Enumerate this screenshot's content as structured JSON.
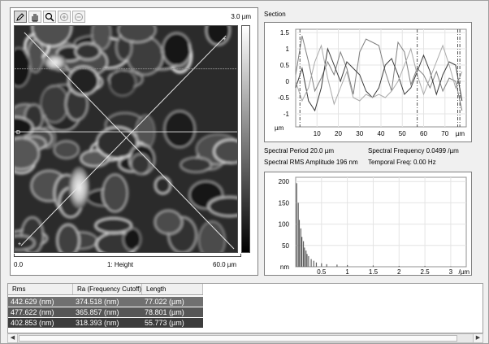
{
  "image_panel": {
    "tools": [
      "pencil-icon",
      "hand-icon",
      "zoom-icon",
      "zoom-in-icon",
      "zoom-out-icon"
    ],
    "scale_max": "3.0 µm",
    "x_min": "0.0",
    "channel": "1: Height",
    "x_max": "60.0 µm"
  },
  "section": {
    "title": "Section",
    "spectral_period": "Spectral Period 20.0 µm",
    "spectral_frequency": "Spectral Frequency 0.0499 /µm",
    "spectral_rms": "Spectral RMS Amplitude 196 nm",
    "temporal_freq": "Temporal Freq: 0.00 Hz"
  },
  "chart_data": [
    {
      "type": "line",
      "title": "",
      "xlabel": "µm",
      "ylabel": "µm",
      "xlim": [
        0,
        80
      ],
      "ylim": [
        -1.4,
        1.6
      ],
      "x_ticks": [
        "10",
        "20",
        "30",
        "40",
        "50",
        "60",
        "70"
      ],
      "y_ticks": [
        "1.5",
        "1",
        "0.5",
        "0",
        "-0.5",
        "-1"
      ],
      "y_unit_label": "µm",
      "x_unit_label": "µm",
      "series": [
        {
          "x": [
            0,
            3,
            6,
            9,
            12,
            15,
            18,
            21,
            24,
            27,
            30,
            33,
            36,
            39,
            42,
            45,
            48,
            51,
            54,
            57,
            60,
            63,
            66,
            69,
            72,
            75,
            78
          ],
          "values": [
            0.2,
            1.4,
            0.6,
            -0.3,
            0.1,
            0.6,
            0.2,
            0.9,
            0.4,
            -0.4,
            0.9,
            1.3,
            1.2,
            1.1,
            0.3,
            -0.3,
            1.2,
            0.9,
            -0.1,
            0.4,
            0.2,
            -0.2,
            0.3,
            -0.3,
            0.1,
            0.0,
            -0.9
          ]
        },
        {
          "x": [
            0,
            3,
            6,
            9,
            12,
            15,
            18,
            21,
            24,
            27,
            30,
            33,
            36,
            39,
            42,
            45,
            48,
            51,
            54,
            57,
            60,
            63,
            66,
            69,
            72,
            75,
            78
          ],
          "values": [
            -0.2,
            0.4,
            -0.6,
            -0.9,
            -0.2,
            1.0,
            0.5,
            0.0,
            0.6,
            0.4,
            0.2,
            -0.3,
            -0.5,
            -0.2,
            0.5,
            0.7,
            0.2,
            -0.4,
            -0.2,
            0.3,
            0.8,
            0.3,
            -0.4,
            0.2,
            0.6,
            0.5,
            -0.6
          ]
        },
        {
          "x": [
            0,
            3,
            6,
            9,
            12,
            15,
            18,
            21,
            24,
            27,
            30,
            33,
            36,
            39,
            42,
            45,
            48,
            51,
            54,
            57,
            60,
            63,
            66,
            69,
            72,
            75,
            78
          ],
          "values": [
            0.0,
            -0.6,
            -0.2,
            0.6,
            1.1,
            0.1,
            -0.7,
            -0.2,
            0.3,
            -0.5,
            -0.6,
            -0.4,
            -0.5,
            -0.4,
            -0.5,
            -0.3,
            0.0,
            0.5,
            1.0,
            0.2,
            -0.4,
            0.1,
            0.6,
            1.1,
            0.5,
            -0.2,
            0.3
          ]
        }
      ],
      "cursor_x": [
        2,
        57,
        76,
        77
      ],
      "grid": true
    },
    {
      "type": "bar",
      "title": "",
      "xlabel": "/µm",
      "ylabel": "nm",
      "xlim": [
        0,
        3.3
      ],
      "ylim": [
        0,
        210
      ],
      "x_ticks": [
        "0.5",
        "1",
        "1.5",
        "2",
        "2.5",
        "3"
      ],
      "y_ticks": [
        "200",
        "150",
        "100",
        "50",
        "nm"
      ],
      "x": [
        0.02,
        0.05,
        0.07,
        0.1,
        0.12,
        0.15,
        0.17,
        0.2,
        0.22,
        0.25,
        0.3,
        0.35,
        0.4,
        0.5,
        0.6,
        0.8,
        1.0,
        1.5,
        2.0,
        2.5,
        3.0
      ],
      "values": [
        196,
        150,
        110,
        90,
        70,
        60,
        45,
        38,
        30,
        25,
        18,
        14,
        10,
        8,
        6,
        5,
        4,
        3,
        2,
        2,
        1
      ],
      "grid": true
    }
  ],
  "table": {
    "headers": [
      "Rms",
      "Ra (Frequency Cutoff)",
      "Length"
    ],
    "rows": [
      [
        "442.629 (nm)",
        "374.518 (nm)",
        "77.022 (µm)"
      ],
      [
        "477.622 (nm)",
        "365.857 (nm)",
        "78.801 (µm)"
      ],
      [
        "402.853 (nm)",
        "318.393 (nm)",
        "55.773 (µm)"
      ]
    ]
  },
  "colors": {
    "row_1": "#707070",
    "row_2": "#565656",
    "row_3": "#3c3c3c"
  }
}
